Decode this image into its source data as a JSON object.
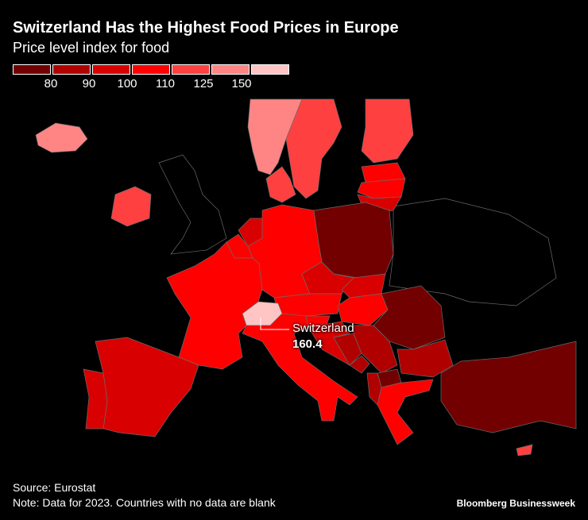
{
  "header": {
    "title": "Switzerland Has the Highest Food Prices in Europe",
    "subtitle": "Price level index for food"
  },
  "legend": {
    "bins": [
      {
        "color": "#730000"
      },
      {
        "color": "#b00000"
      },
      {
        "color": "#d80000"
      },
      {
        "color": "#ff0000"
      },
      {
        "color": "#ff4040"
      },
      {
        "color": "#ff8585"
      },
      {
        "color": "#ffc4c4"
      }
    ],
    "ticks": [
      "80",
      "90",
      "100",
      "110",
      "125",
      "150"
    ]
  },
  "map": {
    "no_data_color": "#000000",
    "countries": {
      "iceland": "#ff8585",
      "norway": "#ff8585",
      "sweden": "#ff4040",
      "finland": "#ff4040",
      "estonia": "#ff0000",
      "latvia": "#ff0000",
      "lithuania": "#d80000",
      "denmark": "#ff4040",
      "ireland": "#ff4040",
      "france": "#ff0000",
      "spain": "#d80000",
      "portugal": "#d80000",
      "belgium": "#ff0000",
      "netherlands": "#d80000",
      "luxembourg": "#ff4040",
      "germany": "#ff0000",
      "poland": "#730000",
      "czechia": "#d80000",
      "austria": "#ff0000",
      "switzerland": "#ffc4c4",
      "italy": "#ff0000",
      "slovakia": "#d80000",
      "hungary": "#ff0000",
      "romania": "#730000",
      "bulgaria": "#b00000",
      "greece": "#ff0000",
      "turkey": "#730000",
      "slovenia": "#ff0000",
      "croatia": "#d80000",
      "bosnia": "#b00000",
      "serbia": "#b00000",
      "montenegro": "#b00000",
      "albania": "#b00000",
      "north-macedonia": "#730000",
      "cyprus": "#ff4040"
    }
  },
  "callout": {
    "name": "Switzerland",
    "value": "160.4"
  },
  "footer": {
    "source": "Source: Eurostat",
    "note": "Note: Data for 2023. Countries with no data are blank",
    "brand": "Bloomberg Businessweek"
  }
}
